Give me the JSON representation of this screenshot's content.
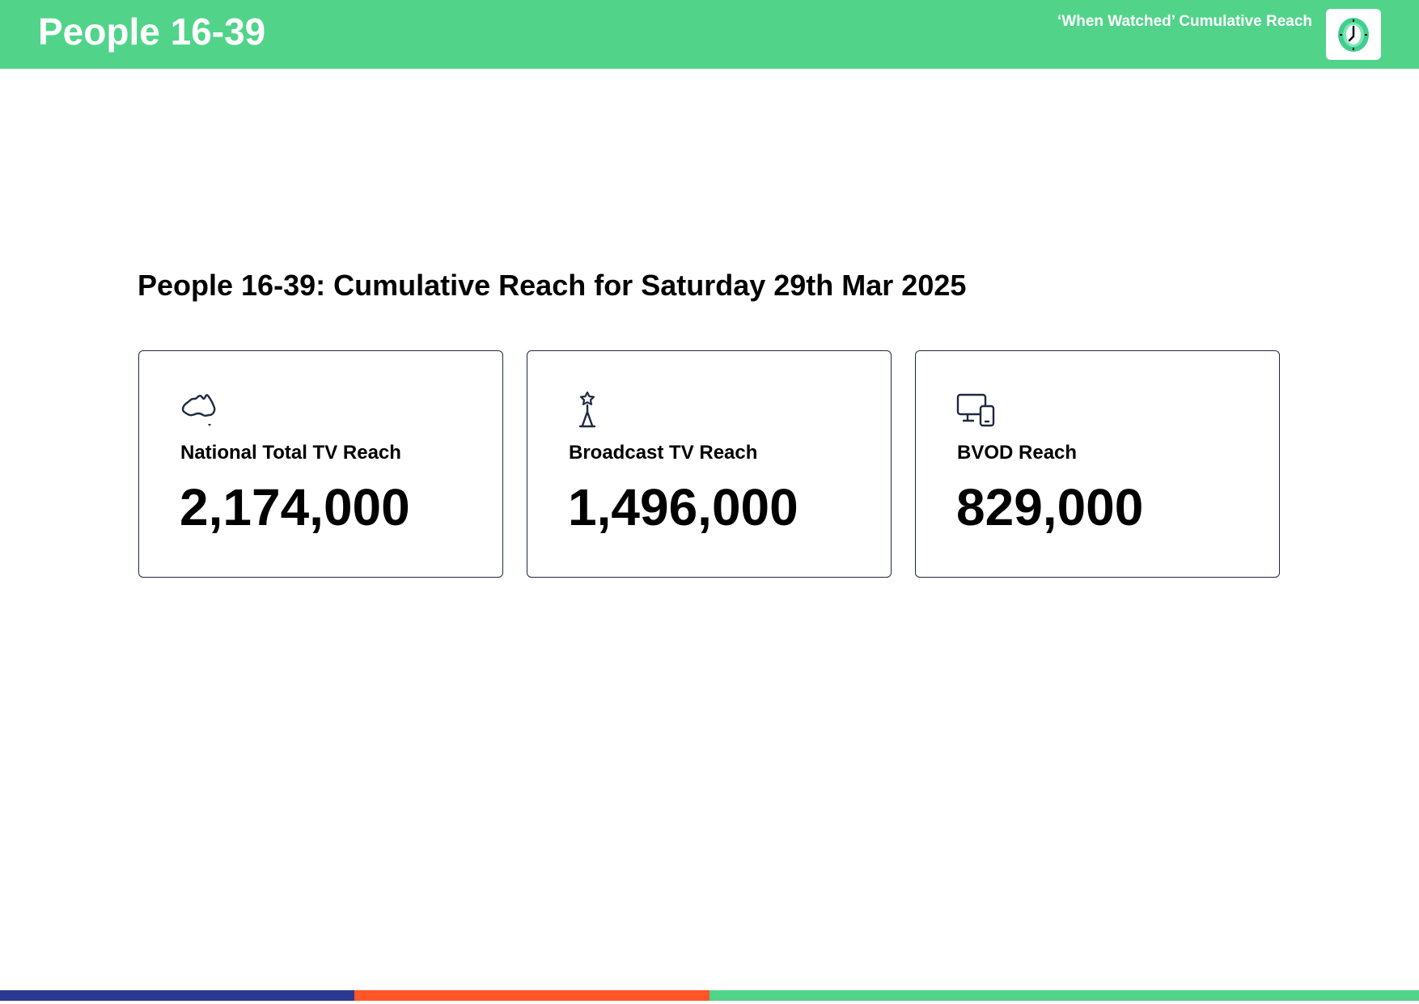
{
  "header": {
    "title": "People 16-39",
    "subtitle": "‘When Watched’ Cumulative Reach",
    "logo_icon": "clock-icon"
  },
  "main": {
    "heading": "People 16-39: Cumulative Reach for Saturday 29th Mar 2025",
    "cards": [
      {
        "label": "National Total TV Reach",
        "value": "2,174,000",
        "icon": "australia-map-icon"
      },
      {
        "label": "Broadcast TV Reach",
        "value": "1,496,000",
        "icon": "broadcast-tower-icon"
      },
      {
        "label": "BVOD Reach",
        "value": "829,000",
        "icon": "devices-icon"
      }
    ]
  },
  "colors": {
    "brand_green": "#51d48a",
    "navy": "#2b3990",
    "orange": "#ff5627",
    "card_border": "#1f2940"
  }
}
